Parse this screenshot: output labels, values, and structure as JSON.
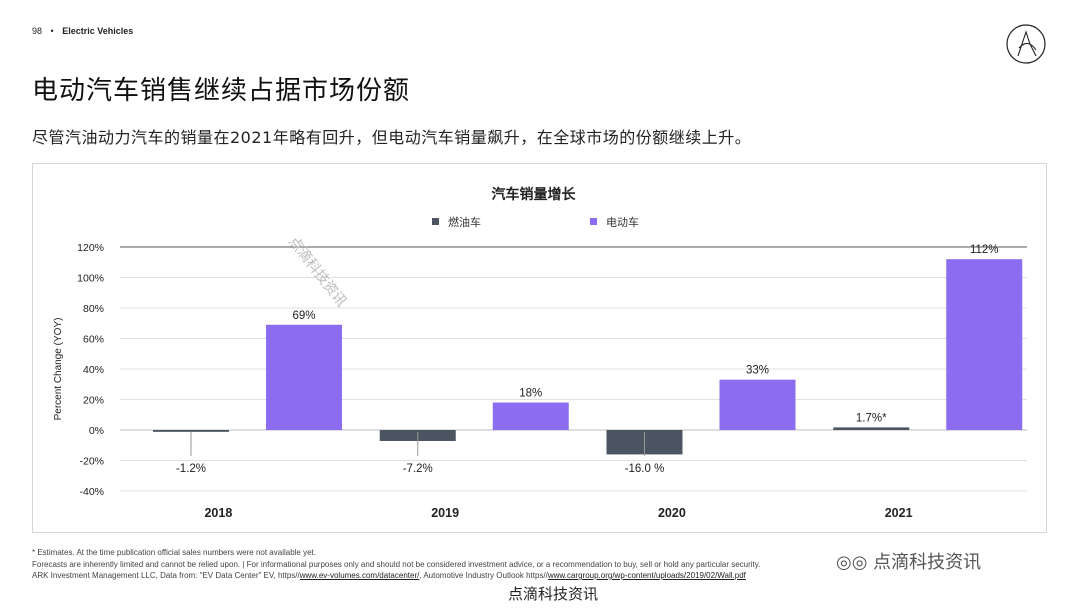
{
  "header": {
    "page_number": "98",
    "bullet": "•",
    "section": "Electric Vehicles"
  },
  "title": "电动汽车销售继续占据市场份额",
  "subtitle": "尽管汽油动力汽车的销量在2021年略有回升，但电动汽车销量飙升，在全球市场的份额继续上升。",
  "chart_data": {
    "type": "bar",
    "title": "汽车销量增长",
    "ylabel": "Percent Change (YOY)",
    "xlabel": "",
    "categories": [
      "2018",
      "2019",
      "2020",
      "2021"
    ],
    "series": [
      {
        "name": "燃油车",
        "values": [
          -1.2,
          -7.2,
          -16.0,
          1.7
        ],
        "labels": [
          "-1.2%",
          "-7.2%",
          "-16.0 %",
          "1.7%*"
        ],
        "color": "#4a5561"
      },
      {
        "name": "电动车",
        "values": [
          69,
          18,
          33,
          112
        ],
        "labels": [
          "69%",
          "18%",
          "33%",
          "112%"
        ],
        "color": "#8c6cf0"
      }
    ],
    "ylim": [
      -40,
      120
    ],
    "yticks": [
      120,
      100,
      80,
      60,
      40,
      20,
      0,
      -20,
      -40
    ],
    "ytick_labels": [
      "120%",
      "100%",
      "80%",
      "60%",
      "40%",
      "20%",
      "0%",
      "-20%",
      "-40%"
    ],
    "grid": true,
    "legend_position": "top-center"
  },
  "footnotes": {
    "estimates": "* Estimates. At the time publication official sales numbers were not available yet.",
    "disclaimer": "Forecasts are inherently limited and cannot be relied upon. | For informational purposes only and should not be considered investment advice, or a recommendation to buy, sell or hold any particular security.",
    "source_prefix": "ARK Investment Management LLC, Data from: \"EV Data Center\" EV, https//",
    "source_link1": "www.ev-volumes.com/datacenter/",
    "source_middle": ", Automotive Industry Outlook https//",
    "source_link2": "www.cargroup.org/wp-content/uploads/2019/02/Wall.pdf"
  },
  "watermark": {
    "wechat": "点滴科技资讯",
    "bottom": "点滴科技资讯",
    "diagonal": "点滴科技资讯"
  }
}
